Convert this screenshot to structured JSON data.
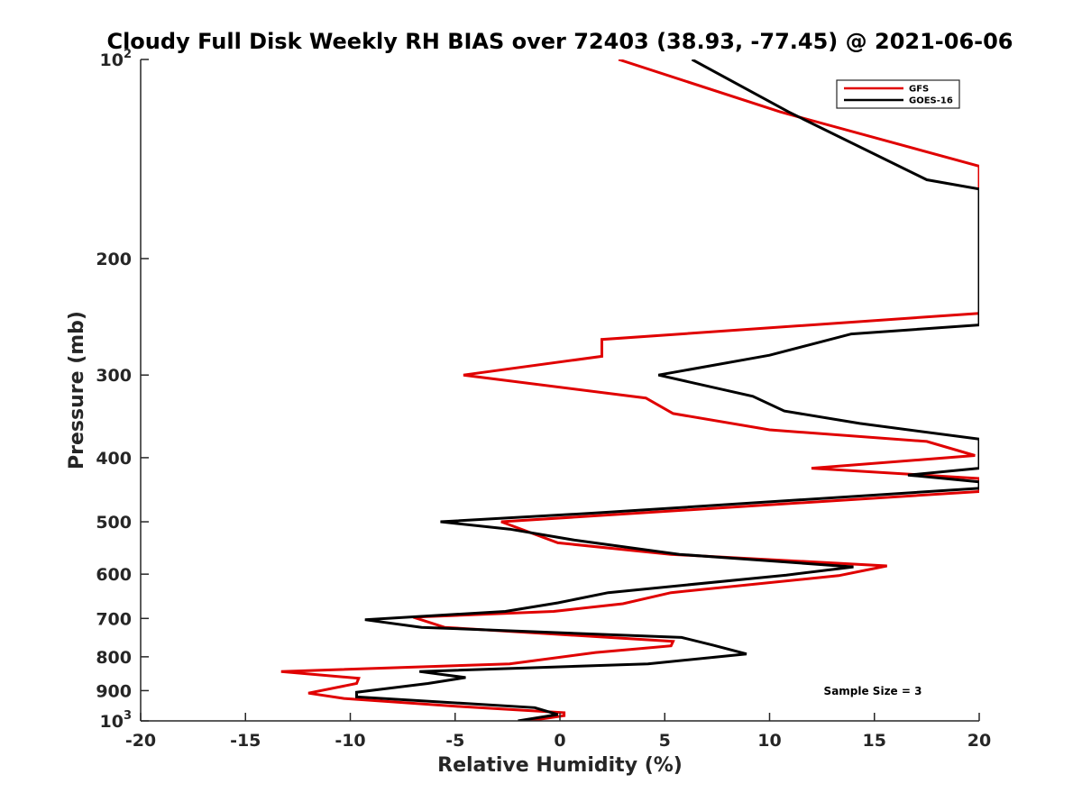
{
  "chart_data": {
    "type": "line",
    "title": "Cloudy Full Disk Weekly RH BIAS over 72403 (38.93, -77.45) @ 2021-06-06",
    "xlabel": "Relative Humidity (%)",
    "ylabel": "Pressure (mb)",
    "xlim": [
      -20,
      20
    ],
    "ylim": [
      100,
      1000
    ],
    "y_scale": "log",
    "y_reversed": true,
    "grid": false,
    "legend_position": "top-right",
    "x_ticks": [
      -20,
      -15,
      -10,
      -5,
      0,
      5,
      10,
      15,
      20
    ],
    "x_tick_labels": [
      "-20",
      "-15",
      "-10",
      "-5",
      "0",
      "5",
      "10",
      "15",
      "20"
    ],
    "y_ticks": [
      100,
      200,
      300,
      400,
      500,
      600,
      700,
      800,
      900,
      1000
    ],
    "y_tick_labels": [
      {
        "base": "10",
        "sup": "2"
      },
      {
        "base": "200"
      },
      {
        "base": "300"
      },
      {
        "base": "400"
      },
      {
        "base": "500"
      },
      {
        "base": "600"
      },
      {
        "base": "700"
      },
      {
        "base": "800"
      },
      {
        "base": "900"
      },
      {
        "base": "10",
        "sup": "3"
      }
    ],
    "series": [
      {
        "name": "GFS",
        "color": "#e00000",
        "points": [
          [
            2.8,
            100
          ],
          [
            10.5,
            120
          ],
          [
            20,
            145
          ],
          [
            20,
            242
          ],
          [
            2.0,
            265
          ],
          [
            2.0,
            281
          ],
          [
            -4.6,
            300
          ],
          [
            4.1,
            325
          ],
          [
            5.4,
            343
          ],
          [
            10.0,
            363
          ],
          [
            17.5,
            378
          ],
          [
            19.8,
            397
          ],
          [
            12.0,
            415
          ],
          [
            20,
            430
          ],
          [
            20,
            450
          ],
          [
            -2.8,
            500
          ],
          [
            -0.1,
            538
          ],
          [
            5.3,
            560
          ],
          [
            15.6,
            583
          ],
          [
            13.3,
            603
          ],
          [
            5.3,
            640
          ],
          [
            3.0,
            665
          ],
          [
            -0.3,
            683
          ],
          [
            -7.0,
            697
          ],
          [
            -5.5,
            722
          ],
          [
            5.4,
            758
          ],
          [
            5.3,
            770
          ],
          [
            1.7,
            788
          ],
          [
            -2.4,
            820
          ],
          [
            -13.3,
            842
          ],
          [
            -9.6,
            862
          ],
          [
            -9.7,
            878
          ],
          [
            -12.0,
            908
          ],
          [
            -10.3,
            925
          ],
          [
            -4.6,
            952
          ],
          [
            0.2,
            972
          ],
          [
            0.2,
            982
          ],
          [
            -1.5,
            1000
          ]
        ]
      },
      {
        "name": "GOES-16",
        "color": "#000000",
        "points": [
          [
            6.3,
            100
          ],
          [
            10.9,
            120
          ],
          [
            17.5,
            152
          ],
          [
            20,
            157
          ],
          [
            20,
            252
          ],
          [
            13.9,
            260
          ],
          [
            10.0,
            280
          ],
          [
            4.7,
            300
          ],
          [
            9.2,
            323
          ],
          [
            10.7,
            340
          ],
          [
            14.3,
            355
          ],
          [
            20,
            375
          ],
          [
            20,
            415
          ],
          [
            16.6,
            425
          ],
          [
            20,
            435
          ],
          [
            20,
            445
          ],
          [
            1.7,
            485
          ],
          [
            -5.7,
            500
          ],
          [
            -2.4,
            513
          ],
          [
            0.7,
            533
          ],
          [
            5.7,
            560
          ],
          [
            14.0,
            585
          ],
          [
            10.8,
            602
          ],
          [
            2.3,
            640
          ],
          [
            -0.1,
            663
          ],
          [
            -2.6,
            683
          ],
          [
            -9.3,
            703
          ],
          [
            -6.6,
            722
          ],
          [
            5.8,
            748
          ],
          [
            7.3,
            768
          ],
          [
            8.9,
            792
          ],
          [
            4.2,
            820
          ],
          [
            -6.7,
            842
          ],
          [
            -4.5,
            860
          ],
          [
            -6.3,
            878
          ],
          [
            -9.7,
            905
          ],
          [
            -9.7,
            920
          ],
          [
            -1.2,
            955
          ],
          [
            -0.1,
            978
          ],
          [
            -2.0,
            1000
          ]
        ]
      }
    ],
    "annotations": [
      {
        "text": "Sample Size = 3"
      }
    ]
  }
}
